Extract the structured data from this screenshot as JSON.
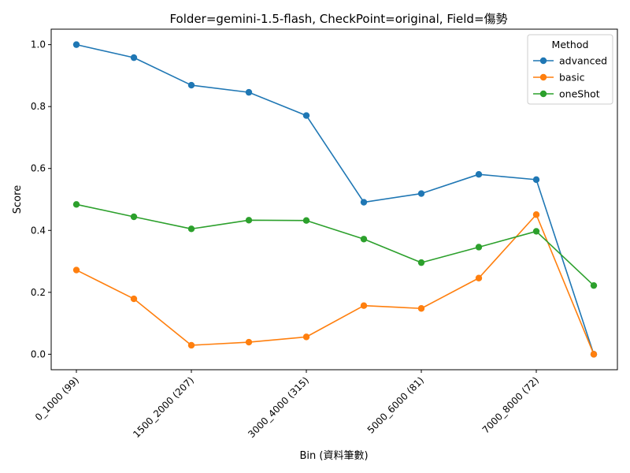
{
  "chart_data": {
    "type": "line",
    "title": "Folder=gemini-1.5-flash, CheckPoint=original, Field=傷勢",
    "xlabel": "Bin (資料筆數)",
    "ylabel": "Score",
    "categories": [
      "0_1000 (99)",
      "",
      "1500_2000 (207)",
      "",
      "3000_4000 (315)",
      "",
      "5000_6000 (81)",
      "",
      "7000_8000 (72)",
      ""
    ],
    "x_tick_labels": [
      "0_1000 (99)",
      "1500_2000 (207)",
      "3000_4000 (315)",
      "5000_6000 (81)",
      "7000_8000 (72)"
    ],
    "x_tick_indices": [
      0,
      2,
      4,
      6,
      8
    ],
    "y_ticks": [
      "0.0",
      "0.2",
      "0.4",
      "0.6",
      "0.8",
      "1.0"
    ],
    "y_tick_values": [
      0.0,
      0.2,
      0.4,
      0.6,
      0.8,
      1.0
    ],
    "ylim": [
      -0.05,
      1.05
    ],
    "grid": false,
    "legend": {
      "title": "Method",
      "placement": "top-right"
    },
    "series": [
      {
        "name": "advanced",
        "color": "#1f77b4",
        "values": [
          1.0,
          0.958,
          0.869,
          0.846,
          0.771,
          0.491,
          0.519,
          0.581,
          0.564,
          0.0
        ]
      },
      {
        "name": "basic",
        "color": "#ff7f0e",
        "values": [
          0.272,
          0.179,
          0.029,
          0.039,
          0.056,
          0.157,
          0.148,
          0.246,
          0.451,
          0.0
        ]
      },
      {
        "name": "oneShot",
        "color": "#2ca02c",
        "values": [
          0.484,
          0.444,
          0.405,
          0.433,
          0.432,
          0.372,
          0.296,
          0.346,
          0.397,
          0.222
        ]
      }
    ]
  }
}
